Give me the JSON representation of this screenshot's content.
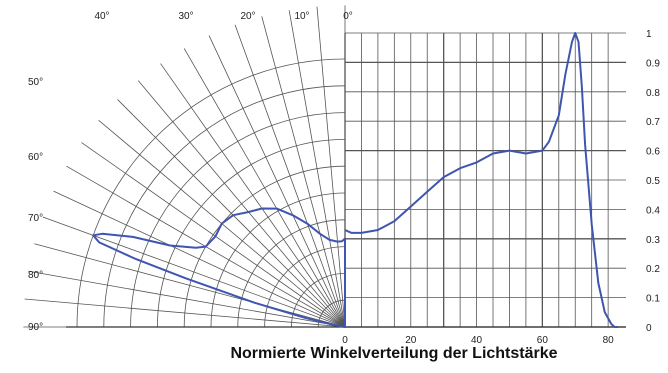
{
  "chart_data": {
    "type": "line",
    "title": "Normierte Winkelverteilung der Lichtstärke",
    "colors": {
      "curve": "#3f55b0",
      "grid": "#555555"
    },
    "grid": true,
    "polar": {
      "angle_labels": [
        "0°",
        "10°",
        "20°",
        "30°",
        "40°",
        "50°",
        "60°",
        "70°",
        "80°",
        "90°"
      ],
      "angle_ticks": [
        0,
        10,
        20,
        30,
        40,
        50,
        60,
        70,
        80,
        90
      ],
      "radius_range": [
        0,
        1
      ]
    },
    "cartesian": {
      "xlim": [
        0,
        83
      ],
      "ylim": [
        0,
        1.0
      ],
      "x_ticks": [
        0,
        20,
        40,
        60,
        80
      ],
      "x_tick_labels": [
        "0",
        "20",
        "40",
        "60",
        "80"
      ],
      "y_ticks": [
        0,
        0.1,
        0.2,
        0.3,
        0.4,
        0.5,
        0.6,
        0.7,
        0.8,
        0.9,
        1
      ],
      "y_tick_labels": [
        "0",
        "0.1",
        "0.2",
        "0.3",
        "0.4",
        "0.5",
        "0.6",
        "0.7",
        "0.8",
        "0.9",
        "1"
      ]
    },
    "series": [
      {
        "x": [
          0,
          2,
          5,
          10,
          15,
          20,
          25,
          30,
          35,
          40,
          45,
          50,
          55,
          60,
          62,
          65,
          67,
          69,
          70,
          71,
          72,
          73,
          75,
          77,
          79,
          81,
          82,
          83
        ],
        "y": [
          0.33,
          0.32,
          0.32,
          0.33,
          0.36,
          0.41,
          0.46,
          0.51,
          0.54,
          0.56,
          0.59,
          0.6,
          0.59,
          0.6,
          0.63,
          0.72,
          0.86,
          0.97,
          1.0,
          0.97,
          0.82,
          0.62,
          0.35,
          0.15,
          0.05,
          0.01,
          0.0,
          0.0
        ]
      }
    ]
  },
  "caption": "Normierte Winkelverteilung der Lichtstärke"
}
